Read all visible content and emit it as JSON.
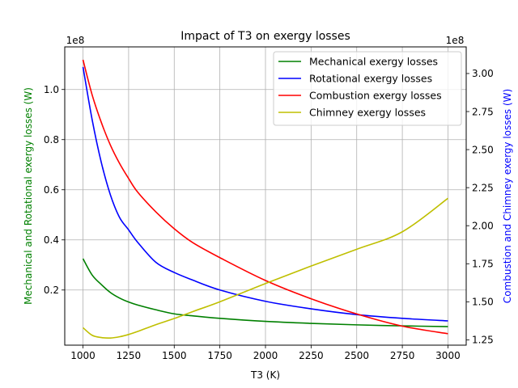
{
  "chart_data": {
    "type": "line",
    "title": "Impact of T3 on exergy losses",
    "xlabel": "T3 (K)",
    "ylabel_left": "Mechanical  and Rotational exergy losses (W)",
    "ylabel_right": "Combustion and Chimney exergy losses (W)",
    "left_offset_label": "1e8",
    "right_offset_label": "1e8",
    "xlim": [
      900,
      3100
    ],
    "ylim_left": [
      -0.02,
      1.17
    ],
    "ylim_right": [
      1.215,
      3.175
    ],
    "xticks": [
      1000,
      1250,
      1500,
      1750,
      2000,
      2250,
      2500,
      2750,
      3000
    ],
    "xtick_labels": [
      "1000",
      "1250",
      "1500",
      "1750",
      "2000",
      "2250",
      "2500",
      "2750",
      "3000"
    ],
    "yticks_left": [
      0.2,
      0.4,
      0.6,
      0.8,
      1.0
    ],
    "ytick_labels_left": [
      "0.2",
      "0.4",
      "0.6",
      "0.8",
      "1.0"
    ],
    "yticks_right": [
      1.25,
      1.5,
      1.75,
      2.0,
      2.25,
      2.5,
      2.75,
      3.0
    ],
    "ytick_labels_right": [
      "1.25",
      "1.50",
      "1.75",
      "2.00",
      "2.25",
      "2.50",
      "2.75",
      "3.00"
    ],
    "grid": true,
    "legend_position": "top-right",
    "x": [
      1000,
      1050,
      1100,
      1150,
      1200,
      1250,
      1300,
      1400,
      1500,
      1600,
      1750,
      2000,
      2250,
      2500,
      2750,
      3000
    ],
    "series": [
      {
        "name": "Mechanical exergy losses",
        "axis": "left",
        "color": "#008000",
        "values": [
          0.325,
          0.26,
          0.222,
          0.19,
          0.168,
          0.152,
          0.14,
          0.121,
          0.105,
          0.097,
          0.087,
          0.075,
          0.067,
          0.061,
          0.057,
          0.054
        ]
      },
      {
        "name": "Rotational exergy losses",
        "axis": "left",
        "color": "#0000ff",
        "values": [
          1.09,
          0.88,
          0.71,
          0.58,
          0.49,
          0.44,
          0.39,
          0.31,
          0.27,
          0.24,
          0.2,
          0.155,
          0.125,
          0.102,
          0.087,
          0.077
        ]
      },
      {
        "name": "Combustion exergy losses",
        "axis": "right",
        "color": "#ff0000",
        "values": [
          3.09,
          2.86,
          2.68,
          2.53,
          2.41,
          2.31,
          2.22,
          2.09,
          1.98,
          1.89,
          1.79,
          1.64,
          1.52,
          1.42,
          1.34,
          1.29
        ]
      },
      {
        "name": "Chimney exergy losses",
        "axis": "right",
        "color": "#bfbf00",
        "values": [
          1.33,
          1.28,
          1.265,
          1.262,
          1.27,
          1.285,
          1.305,
          1.35,
          1.39,
          1.435,
          1.5,
          1.62,
          1.735,
          1.845,
          1.96,
          2.18
        ]
      }
    ]
  }
}
